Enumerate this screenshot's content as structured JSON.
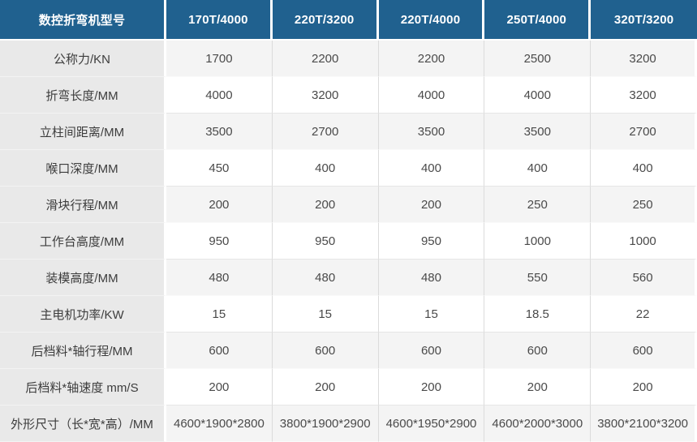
{
  "table": {
    "title": "数控折弯机型号",
    "header": {
      "label": "数控折弯机型号",
      "columns": [
        "170T/4000",
        "220T/3200",
        "220T/4000",
        "250T/4000",
        "320T/3200"
      ]
    },
    "rows": [
      {
        "label": "公称力/KN",
        "values": [
          "1700",
          "2200",
          "2200",
          "2500",
          "3200"
        ]
      },
      {
        "label": "折弯长度/MM",
        "values": [
          "4000",
          "3200",
          "4000",
          "4000",
          "3200"
        ]
      },
      {
        "label": "立柱间距离/MM",
        "values": [
          "3500",
          "2700",
          "3500",
          "3500",
          "2700"
        ]
      },
      {
        "label": "喉口深度/MM",
        "values": [
          "450",
          "400",
          "400",
          "400",
          "400"
        ]
      },
      {
        "label": "滑块行程/MM",
        "values": [
          "200",
          "200",
          "200",
          "250",
          "250"
        ]
      },
      {
        "label": "工作台高度/MM",
        "values": [
          "950",
          "950",
          "950",
          "1000",
          "1000"
        ]
      },
      {
        "label": "装模高度/MM",
        "values": [
          "480",
          "480",
          "480",
          "550",
          "560"
        ]
      },
      {
        "label": "主电机功率/KW",
        "values": [
          "15",
          "15",
          "15",
          "18.5",
          "22"
        ]
      },
      {
        "label": "后档料*轴行程/MM",
        "values": [
          "600",
          "600",
          "600",
          "600",
          "600"
        ]
      },
      {
        "label": "后档料*轴速度 mm/S",
        "values": [
          "200",
          "200",
          "200",
          "200",
          "200"
        ]
      },
      {
        "label": "外形尺寸（长*宽*高）/MM",
        "values": [
          "4600*1900*2800",
          "3800*1900*2900",
          "4600*1950*2900",
          "4600*2000*3000",
          "3800*2100*3200"
        ]
      }
    ],
    "colors": {
      "header_bg": "#20618F",
      "header_text": "#FFFFFF",
      "label_column_bg": "#E9E9E9",
      "stripe_row_bg": "#F4F4F4",
      "plain_row_bg": "#FFFFFF",
      "vertical_border": "#DBDBDB",
      "horizontal_border": "#E6E6E6",
      "body_text": "#4A4A4A"
    }
  }
}
